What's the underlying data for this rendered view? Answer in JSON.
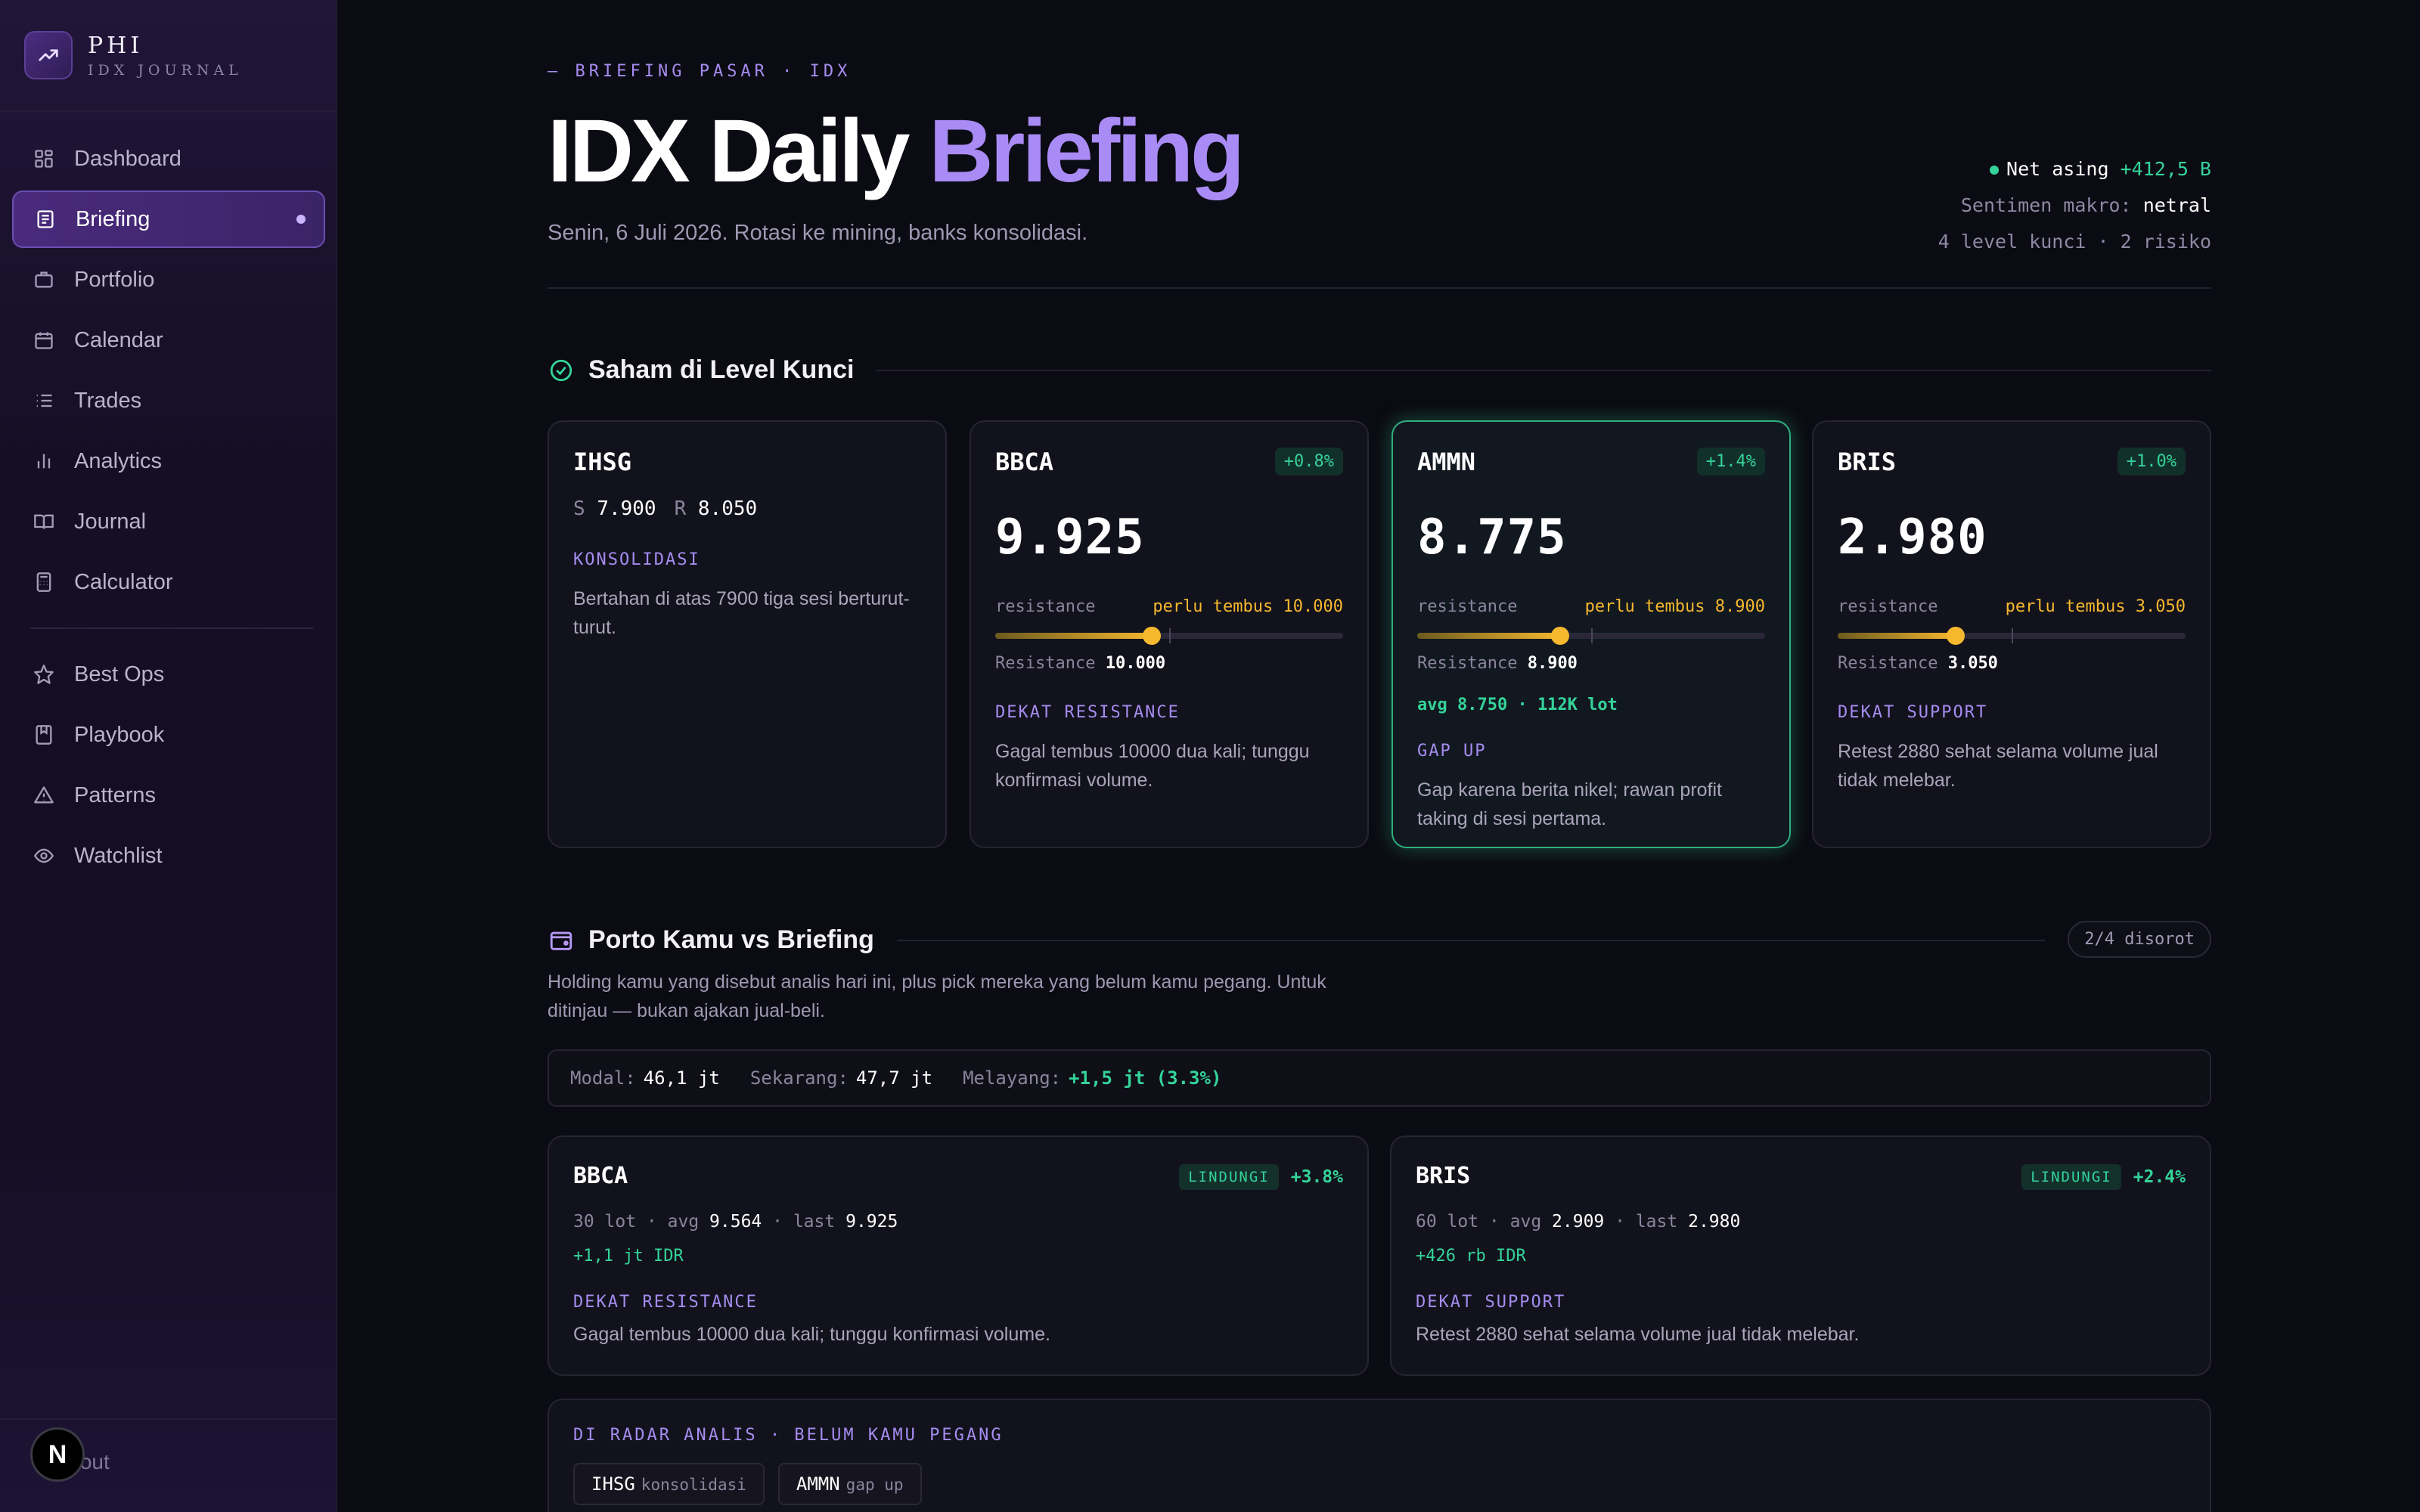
{
  "brand": {
    "title": "PHI",
    "subtitle": "IDX JOURNAL"
  },
  "nav": {
    "main": [
      {
        "label": "Dashboard",
        "icon": "dashboard-icon"
      },
      {
        "label": "Briefing",
        "icon": "newspaper-icon",
        "active": true
      },
      {
        "label": "Portfolio",
        "icon": "briefcase-icon"
      },
      {
        "label": "Calendar",
        "icon": "calendar-icon"
      },
      {
        "label": "Trades",
        "icon": "list-icon"
      },
      {
        "label": "Analytics",
        "icon": "bar-chart-icon"
      },
      {
        "label": "Journal",
        "icon": "book-icon"
      },
      {
        "label": "Calculator",
        "icon": "calculator-icon"
      }
    ],
    "secondary": [
      {
        "label": "Best Ops",
        "icon": "star-icon"
      },
      {
        "label": "Playbook",
        "icon": "bookmark-book-icon"
      },
      {
        "label": "Patterns",
        "icon": "warning-triangle-icon"
      },
      {
        "label": "Watchlist",
        "icon": "eye-icon"
      }
    ],
    "sign_out": "Sign out",
    "n_badge": "N"
  },
  "header": {
    "kicker": "— BRIEFING PASAR · IDX",
    "title_main": "IDX Daily ",
    "title_accent": "Briefing",
    "subtitle": "Senin, 6 Juli 2026. Rotasi ke mining, banks konsolidasi.",
    "net_label": "Net asing",
    "net_value": "+412,5 B",
    "sentiment_label": "Sentimen makro:",
    "sentiment_value": "netral",
    "summary": "4 level kunci · 2 risiko"
  },
  "key_levels": {
    "title": "Saham di Level Kunci",
    "cards": [
      {
        "ticker": "IHSG",
        "s_label": "S",
        "s_value": "7.900",
        "r_label": "R",
        "r_value": "8.050",
        "tag": "KONSOLIDASI",
        "desc": "Bertahan di atas 7900 tiga sesi berturut-turut."
      },
      {
        "ticker": "BBCA",
        "change": "+0.8%",
        "price": "9.925",
        "level_label": "resistance",
        "need": "perlu tembus 10.000",
        "progress": 0.45,
        "res_label": "Resistance",
        "res_value": "10.000",
        "tag": "DEKAT RESISTANCE",
        "desc": "Gagal tembus 10000 dua kali; tunggu konfirmasi volume."
      },
      {
        "ticker": "AMMN",
        "change": "+1.4%",
        "price": "8.775",
        "level_label": "resistance",
        "need": "perlu tembus 8.900",
        "progress": 0.41,
        "res_label": "Resistance",
        "res_value": "8.900",
        "avg": "avg 8.750 · 112K lot",
        "tag": "GAP UP",
        "desc": "Gap karena berita nikel; rawan profit taking di sesi pertama."
      },
      {
        "ticker": "BRIS",
        "change": "+1.0%",
        "price": "2.980",
        "level_label": "resistance",
        "need": "perlu tembus 3.050",
        "progress": 0.34,
        "res_label": "Resistance",
        "res_value": "3.050",
        "tag": "DEKAT SUPPORT",
        "desc": "Retest 2880 sehat selama volume jual tidak melebar."
      }
    ]
  },
  "portfolio": {
    "title": "Porto Kamu vs Briefing",
    "count": "2/4 disorot",
    "desc": "Holding kamu yang disebut analis hari ini, plus pick mereka yang belum kamu pegang. Untuk ditinjau — bukan ajakan jual-beli.",
    "modal_label": "Modal:",
    "modal_value": "46,1 jt",
    "now_label": "Sekarang:",
    "now_value": "47,7 jt",
    "float_label": "Melayang:",
    "float_value": "+1,5 jt (3.3%)",
    "holdings": [
      {
        "ticker": "BBCA",
        "badge": "LINDUNGI",
        "pct": "+3.8%",
        "lot": "30 lot · avg",
        "avg": "9.564",
        "last_label": "· last",
        "last": "9.925",
        "pnl": "+1,1 jt IDR",
        "tag": "DEKAT RESISTANCE",
        "desc": "Gagal tembus 10000 dua kali; tunggu konfirmasi volume."
      },
      {
        "ticker": "BRIS",
        "badge": "LINDUNGI",
        "pct": "+2.4%",
        "lot": "60 lot · avg",
        "avg": "2.909",
        "last_label": "· last",
        "last": "2.980",
        "pnl": "+426 rb IDR",
        "tag": "DEKAT SUPPORT",
        "desc": "Retest 2880 sehat selama volume jual tidak melebar."
      }
    ],
    "radar": {
      "title": "DI RADAR ANALIS · BELUM KAMU PEGANG",
      "chips": [
        {
          "ticker": "IHSG",
          "note": "konsolidasi"
        },
        {
          "ticker": "AMMN",
          "note": "gap up"
        }
      ]
    }
  },
  "colors": {
    "accent": "#a98bf5",
    "green": "#34d399",
    "amber": "#f5b82e",
    "bg": "#0b0b13"
  }
}
